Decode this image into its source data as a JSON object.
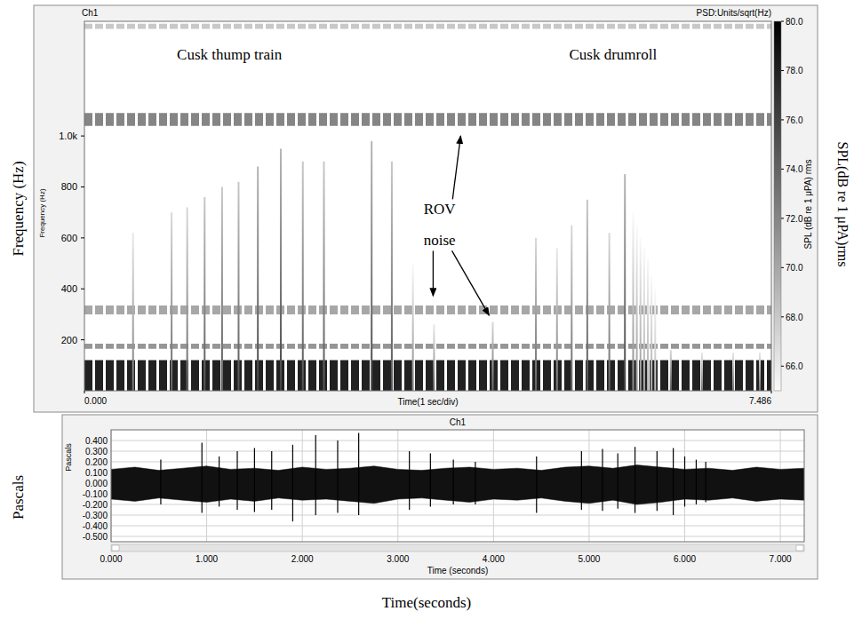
{
  "chart_data": [
    {
      "type": "spectrogram",
      "title": "Ch1",
      "subtitle": "PSD:Units/sqrt(Hz)",
      "x_label": "Time(1 sec/div)",
      "y_label": "Frequency (Hz)",
      "outer_y_label": "Frequency (Hz)",
      "xlim": [
        0,
        7.486
      ],
      "xticks": [
        {
          "value": 0,
          "label": "0.000"
        },
        {
          "value": 7.486,
          "label": "7.486"
        }
      ],
      "ylim": [
        0,
        1450
      ],
      "yticks": [
        200,
        400,
        600,
        800,
        {
          "value": 1000,
          "label": "1.0k"
        }
      ],
      "colorbar": {
        "label": "SPL (dB re 1 μPA) rms",
        "outer_label": "SPL(dB re 1 μPA)rms",
        "range": [
          65,
          80
        ],
        "ticks": [
          {
            "value": 80,
            "label": "80.0"
          },
          {
            "value": 78,
            "label": "78.0"
          },
          {
            "value": 76,
            "label": "76.0"
          },
          {
            "value": 74,
            "label": "74.0"
          },
          {
            "value": 72,
            "label": "72.0"
          },
          {
            "value": 70,
            "label": "70.0"
          },
          {
            "value": 68,
            "label": "68.0"
          },
          {
            "value": 66,
            "label": "66.0"
          }
        ]
      },
      "pulses": {
        "x": [
          0.53,
          0.95,
          1.12,
          1.31,
          1.5,
          1.68,
          1.89,
          2.14,
          2.38,
          2.61,
          3.13,
          3.35,
          3.58,
          3.81,
          4.45,
          4.92,
          5.15,
          5.31,
          5.48,
          5.72,
          5.89,
          5.98,
          6.02,
          6.06,
          6.1,
          6.14,
          6.18,
          6.22,
          6.39,
          6.73,
          7.07,
          7.36
        ],
        "top": [
          620,
          700,
          720,
          760,
          800,
          820,
          880,
          950,
          900,
          900,
          980,
          900,
          500,
          260,
          270,
          600,
          560,
          650,
          750,
          620,
          850,
          700,
          650,
          600,
          560,
          520,
          450,
          400,
          160,
          150,
          150,
          150
        ],
        "level": [
          73,
          74,
          74,
          75,
          75,
          75,
          76,
          76,
          75,
          75,
          76,
          75,
          72,
          73,
          74,
          74,
          73,
          74,
          75,
          74,
          76,
          72,
          71,
          71,
          70,
          70,
          70,
          69,
          74,
          73,
          73,
          73
        ]
      },
      "bands": {
        "low": [
          0,
          165,
          300,
          1040,
          1420
        ],
        "high": [
          120,
          185,
          335,
          1090,
          1440
        ],
        "level": [
          78,
          71,
          70,
          72,
          68
        ]
      },
      "annotations": [
        {
          "text": "Cusk thump train",
          "x": 1.58,
          "y": 1322
        },
        {
          "text": "Cusk drumroll",
          "x": 5.76,
          "y": 1322
        },
        {
          "text": "ROV",
          "x": 3.87,
          "y": 713,
          "arrows": [
            {
              "x": 4.1,
              "y": 1000
            }
          ]
        },
        {
          "text": "noise",
          "x": 3.87,
          "y": 591,
          "arrows": [
            {
              "x": 3.8,
              "y": 372
            },
            {
              "x": 4.41,
              "y": 296
            }
          ]
        }
      ]
    },
    {
      "type": "waveform",
      "title": "Ch1",
      "x_label": "Time (seconds)",
      "y_label": "Pascals",
      "outer_x_label": "Time(seconds)",
      "outer_y_label": "Pascals",
      "grid": true,
      "xlim": [
        0,
        7.25
      ],
      "xticks": [
        {
          "value": 0,
          "label": "0.000"
        },
        {
          "value": 1,
          "label": "1.000"
        },
        {
          "value": 2,
          "label": "2.000"
        },
        {
          "value": 3,
          "label": "3.000"
        },
        {
          "value": 4,
          "label": "4.000"
        },
        {
          "value": 5,
          "label": "5.000"
        },
        {
          "value": 6,
          "label": "6.000"
        },
        {
          "value": 7,
          "label": "7.000"
        }
      ],
      "ylim": [
        -0.55,
        0.5
      ],
      "yticks": [
        {
          "value": 0.4,
          "label": "0.400"
        },
        {
          "value": 0.3,
          "label": "0.300"
        },
        {
          "value": 0.2,
          "label": "0.200"
        },
        {
          "value": 0.1,
          "label": "0.100"
        },
        {
          "value": 0,
          "label": "0.000"
        },
        {
          "value": -0.1,
          "label": "-0.100"
        },
        {
          "value": -0.2,
          "label": "-0.200"
        },
        {
          "value": -0.3,
          "label": "-0.300"
        },
        {
          "value": -0.4,
          "label": "-0.400"
        },
        {
          "value": -0.5,
          "label": "-0.500"
        }
      ],
      "noise": {
        "x": [
          0,
          0.25,
          0.5,
          0.75,
          1,
          1.25,
          1.5,
          1.75,
          2,
          2.25,
          2.5,
          2.75,
          3,
          3.25,
          3.5,
          3.75,
          4,
          4.25,
          4.5,
          4.75,
          5,
          5.25,
          5.5,
          5.75,
          6,
          6.25,
          6.5,
          6.75,
          7,
          7.25
        ],
        "high": [
          0.13,
          0.15,
          0.12,
          0.14,
          0.16,
          0.13,
          0.14,
          0.12,
          0.15,
          0.13,
          0.14,
          0.16,
          0.13,
          0.12,
          0.14,
          0.15,
          0.13,
          0.14,
          0.12,
          0.15,
          0.16,
          0.14,
          0.17,
          0.15,
          0.13,
          0.14,
          0.12,
          0.15,
          0.13,
          0.14
        ],
        "low": [
          -0.15,
          -0.17,
          -0.14,
          -0.16,
          -0.18,
          -0.15,
          -0.17,
          -0.14,
          -0.16,
          -0.15,
          -0.17,
          -0.19,
          -0.15,
          -0.14,
          -0.16,
          -0.18,
          -0.15,
          -0.16,
          -0.14,
          -0.17,
          -0.19,
          -0.16,
          -0.2,
          -0.18,
          -0.15,
          -0.16,
          -0.14,
          -0.17,
          -0.15,
          -0.16
        ]
      },
      "peaks": {
        "x": [
          0.52,
          0.95,
          1.13,
          1.32,
          1.5,
          1.68,
          1.9,
          2.14,
          2.37,
          2.59,
          3.12,
          3.34,
          3.58,
          3.81,
          4.45,
          4.92,
          5.14,
          5.3,
          5.48,
          5.71,
          5.88,
          6.0,
          6.12,
          6.22
        ],
        "high": [
          0.22,
          0.38,
          0.25,
          0.3,
          0.33,
          0.3,
          0.36,
          0.45,
          0.4,
          0.47,
          0.3,
          0.28,
          0.22,
          0.2,
          0.25,
          0.3,
          0.32,
          0.28,
          0.34,
          0.3,
          0.33,
          0.25,
          0.22,
          0.2
        ],
        "low": [
          -0.2,
          -0.28,
          -0.22,
          -0.25,
          -0.27,
          -0.25,
          -0.36,
          -0.3,
          -0.28,
          -0.3,
          -0.25,
          -0.22,
          -0.2,
          -0.2,
          -0.28,
          -0.25,
          -0.26,
          -0.24,
          -0.28,
          -0.26,
          -0.3,
          -0.22,
          -0.2,
          -0.18
        ]
      }
    }
  ]
}
